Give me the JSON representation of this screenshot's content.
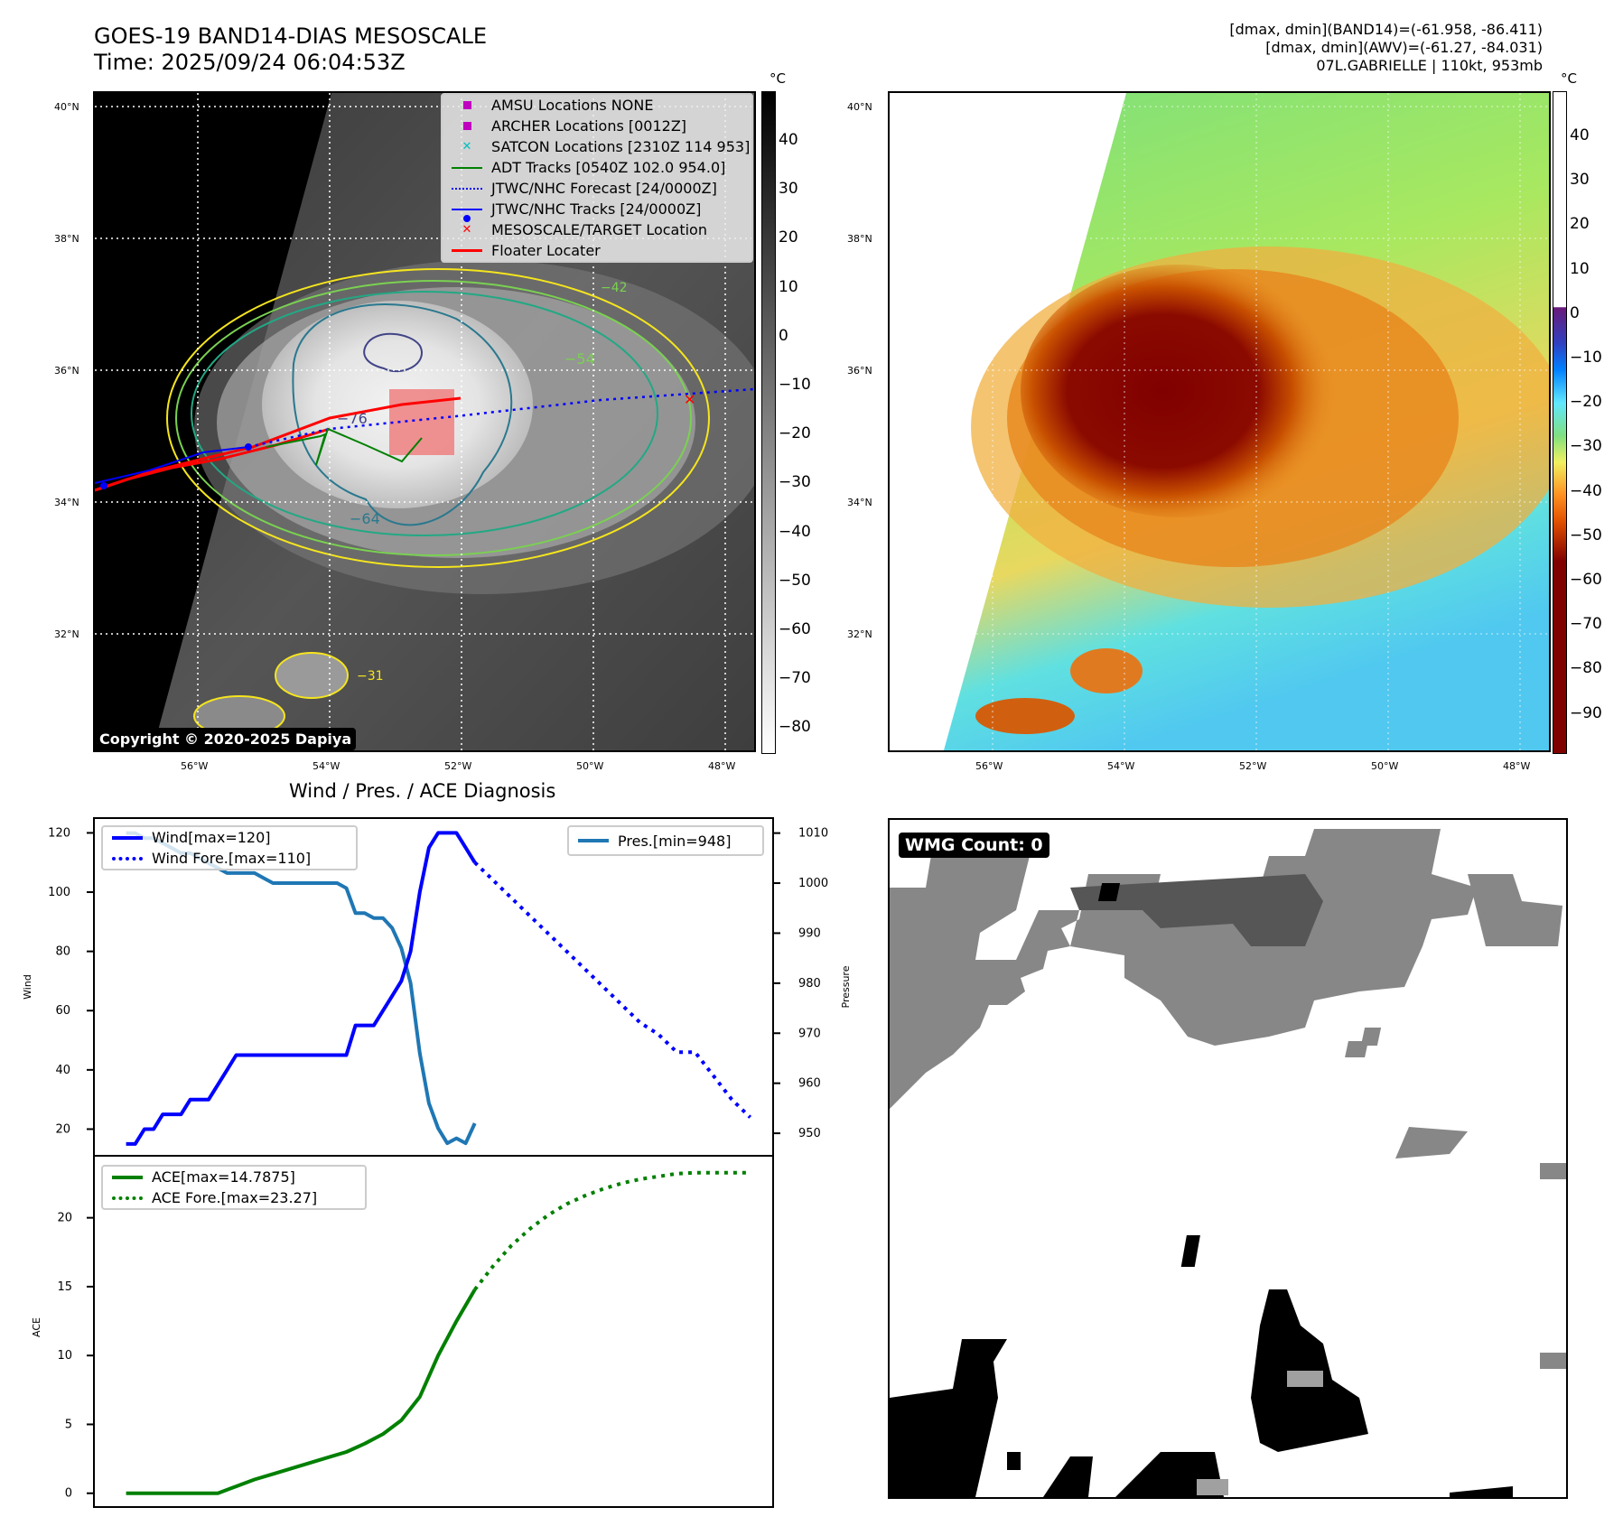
{
  "header": {
    "title_line1": "GOES-19 BAND14-DIAS MESOSCALE",
    "title_line2": "Time: 2025/09/24 06:04:53Z",
    "stats_line1": "[dmax, dmin](BAND14)=(-61.958, -86.411)",
    "stats_line2": "[dmax, dmin](AWV)=(-61.27, -84.031)",
    "stats_line3": "07L.GABRIELLE | 110kt, 953mb"
  },
  "map_axes": {
    "lat_ticks": [
      "40°N",
      "38°N",
      "36°N",
      "34°N",
      "32°N"
    ],
    "lon_ticks": [
      "56°W",
      "54°W",
      "52°W",
      "50°W",
      "48°W"
    ]
  },
  "ir_panel": {
    "colorbar_unit": "°C",
    "colorbar_ticks": [
      "40",
      "30",
      "20",
      "10",
      "0",
      "−10",
      "−20",
      "−30",
      "−40",
      "−50",
      "−60",
      "−70",
      "−80"
    ],
    "contour_labels": [
      "−76",
      "−64",
      "−54",
      "−42",
      "−31",
      "−42"
    ],
    "copyright": "Copyright © 2020-2025 Dapiya",
    "legend": [
      {
        "label": "AMSU Locations NONE",
        "icon": "square-marker-icon",
        "color": "#bf00bf"
      },
      {
        "label": "ARCHER Locations [0012Z]",
        "icon": "square-marker-icon",
        "color": "#bf00bf"
      },
      {
        "label": "SATCON Locations [2310Z 114 953]",
        "icon": "x-marker-icon",
        "color": "#00bfbf"
      },
      {
        "label": "ADT Tracks [0540Z 102.0 954.0]",
        "icon": "solid-line-icon",
        "color": "#008000"
      },
      {
        "label": "JTWC/NHC Forecast [24/0000Z]",
        "icon": "dotted-line-icon",
        "color": "#0000ff"
      },
      {
        "label": "JTWC/NHC Tracks [24/0000Z]",
        "icon": "line-dot-icon",
        "color": "#0000ff"
      },
      {
        "label": "MESOSCALE/TARGET Location",
        "icon": "x-marker-icon",
        "color": "#ff0000"
      },
      {
        "label": "Floater Locater",
        "icon": "solid-line-icon",
        "color": "#ff0000"
      }
    ]
  },
  "awv_panel": {
    "colorbar_unit": "°C",
    "colorbar_ticks": [
      "40",
      "30",
      "20",
      "10",
      "0",
      "−10",
      "−20",
      "−30",
      "−40",
      "−50",
      "−60",
      "−70",
      "−80",
      "−90"
    ]
  },
  "wmg_panel": {
    "badge": "WMG Count: 0"
  },
  "chart_data": [
    {
      "type": "line",
      "title": "Wind / Pres. / ACE Diagnosis",
      "ylabel": "Wind",
      "ylabel_right": "Pressure",
      "ylim": [
        11,
        125
      ],
      "ylim_right": [
        945.5,
        1013
      ],
      "yticks": [
        20,
        40,
        60,
        80,
        100,
        120
      ],
      "yticks_right": [
        950,
        960,
        970,
        980,
        990,
        1000,
        1010
      ],
      "x": [
        0,
        1,
        2,
        3,
        4,
        5,
        6,
        7,
        8,
        9,
        10,
        11,
        12,
        13,
        14,
        15,
        16,
        17,
        18,
        19,
        20,
        21,
        22,
        23,
        24,
        25,
        26,
        27,
        28,
        29,
        30,
        31,
        32,
        33,
        34,
        35,
        36,
        37,
        38
      ],
      "series": [
        {
          "name": "Wind[max=120]",
          "color": "#0000ff",
          "style": "solid",
          "x": [
            0,
            1,
            2,
            3,
            4,
            5,
            6,
            7,
            8,
            9,
            10,
            11,
            12,
            13,
            14,
            15,
            16,
            17,
            18,
            19,
            20,
            21,
            22,
            23,
            24,
            25,
            26,
            27,
            28,
            29,
            30,
            31,
            32,
            33,
            34,
            35,
            36,
            37,
            38
          ],
          "values": [
            15,
            15,
            20,
            20,
            25,
            25,
            25,
            30,
            30,
            30,
            35,
            40,
            45,
            45,
            45,
            45,
            45,
            45,
            45,
            45,
            45,
            45,
            45,
            45,
            45,
            55,
            55,
            55,
            60,
            65,
            70,
            80,
            100,
            115,
            120,
            120,
            120,
            115,
            110
          ]
        },
        {
          "name": "Wind Fore.[max=110]",
          "color": "#0000ff",
          "style": "dotted",
          "x": [
            38,
            40,
            42,
            44,
            46,
            48,
            50,
            52,
            54,
            56,
            58,
            60,
            62,
            64,
            66,
            68
          ],
          "values": [
            110,
            104,
            98,
            92,
            86,
            80,
            74,
            68,
            62,
            56,
            52,
            46,
            46,
            38,
            30,
            24
          ]
        },
        {
          "name": "Pres.[min=948]",
          "color": "#1f77b4",
          "style": "solid",
          "axis": "right",
          "x": [
            0,
            1,
            2,
            3,
            4,
            5,
            6,
            7,
            8,
            9,
            10,
            11,
            12,
            13,
            14,
            15,
            16,
            17,
            18,
            19,
            20,
            21,
            22,
            23,
            24,
            25,
            26,
            27,
            28,
            29,
            30,
            31,
            32,
            33,
            34,
            35,
            36,
            37,
            38
          ],
          "values": [
            1010,
            1010,
            1009,
            1009,
            1008,
            1007,
            1006,
            1006,
            1005,
            1004,
            1003,
            1002,
            1002,
            1002,
            1002,
            1001,
            1000,
            1000,
            1000,
            1000,
            1000,
            1000,
            1000,
            1000,
            999,
            994,
            994,
            993,
            993,
            991,
            987,
            980,
            966,
            956,
            951,
            948,
            949,
            948,
            952
          ]
        }
      ]
    },
    {
      "type": "line",
      "title": "",
      "ylabel": "ACE",
      "ylim": [
        -1,
        24.5
      ],
      "yticks": [
        0,
        5,
        10,
        15,
        20
      ],
      "series": [
        {
          "name": "ACE[max=14.7875]",
          "color": "#008000",
          "style": "solid",
          "x": [
            0,
            2,
            4,
            6,
            8,
            10,
            12,
            14,
            16,
            18,
            20,
            22,
            24,
            26,
            28,
            30,
            32,
            34,
            36,
            38
          ],
          "values": [
            0,
            0,
            0,
            0,
            0,
            0,
            0.5,
            1.0,
            1.4,
            1.8,
            2.2,
            2.6,
            3.0,
            3.6,
            4.3,
            5.3,
            7.0,
            10.0,
            12.5,
            14.7875
          ]
        },
        {
          "name": "ACE Fore.[max=23.27]",
          "color": "#008000",
          "style": "dotted",
          "x": [
            38,
            40,
            42,
            44,
            46,
            48,
            50,
            52,
            54,
            56,
            58,
            60,
            62,
            64,
            66,
            68
          ],
          "values": [
            14.7875,
            16.5,
            18.0,
            19.2,
            20.2,
            21.0,
            21.6,
            22.1,
            22.5,
            22.8,
            23.0,
            23.2,
            23.27,
            23.27,
            23.27,
            23.27
          ]
        }
      ]
    }
  ]
}
